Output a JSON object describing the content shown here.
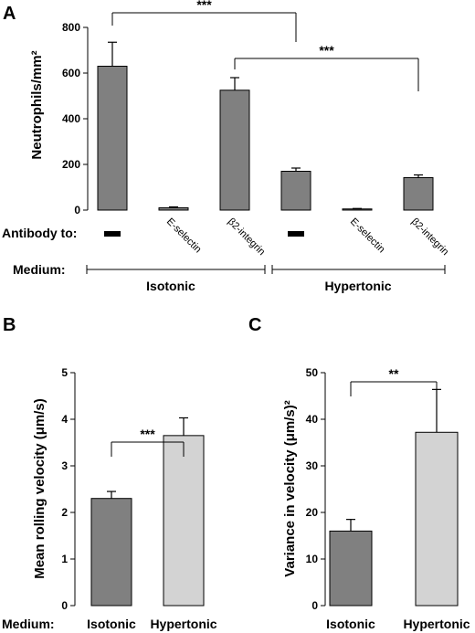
{
  "chart_data": [
    {
      "panel": "A",
      "type": "bar",
      "ylabel": "Neutrophils/mm²",
      "ylim": [
        0,
        800
      ],
      "yticks": [
        "0",
        "200",
        "400",
        "600",
        "800"
      ],
      "categories": [
        "–",
        "E-selectin",
        "β2-integrin",
        "–",
        "E-selectin",
        "β2-integrin"
      ],
      "values": [
        630,
        10,
        525,
        170,
        5,
        142
      ],
      "errors": [
        105,
        4,
        55,
        14,
        2,
        12
      ],
      "bar_color": "#808080",
      "row_antibody_label": "Antibody to:",
      "row_medium_label": "Medium:",
      "groups": [
        "Isotonic",
        "Hypertonic"
      ],
      "significance": [
        {
          "from": 0,
          "to": 3,
          "label": "***"
        },
        {
          "from": 2,
          "to": 5,
          "label": "***"
        }
      ]
    },
    {
      "panel": "B",
      "type": "bar",
      "ylabel": "Mean rolling velocity (μm/s)",
      "ylim": [
        0,
        5
      ],
      "yticks": [
        "0",
        "1",
        "2",
        "3",
        "4",
        "5"
      ],
      "categories": [
        "Isotonic",
        "Hypertonic"
      ],
      "values": [
        2.3,
        3.65
      ],
      "errors": [
        0.15,
        0.38
      ],
      "colors": [
        "#808080",
        "#d3d3d3"
      ],
      "row_medium_label": "Medium:",
      "significance": [
        {
          "from": 0,
          "to": 1,
          "label": "***"
        }
      ]
    },
    {
      "panel": "C",
      "type": "bar",
      "ylabel": "Variance in velocity (μm/s)²",
      "ylim": [
        0,
        50
      ],
      "yticks": [
        "0",
        "10",
        "20",
        "30",
        "40",
        "50"
      ],
      "categories": [
        "Isotonic",
        "Hypertonic"
      ],
      "values": [
        16,
        37.2
      ],
      "errors": [
        2.5,
        9.2
      ],
      "colors": [
        "#808080",
        "#d3d3d3"
      ],
      "significance": [
        {
          "from": 0,
          "to": 1,
          "label": "**"
        }
      ]
    }
  ]
}
